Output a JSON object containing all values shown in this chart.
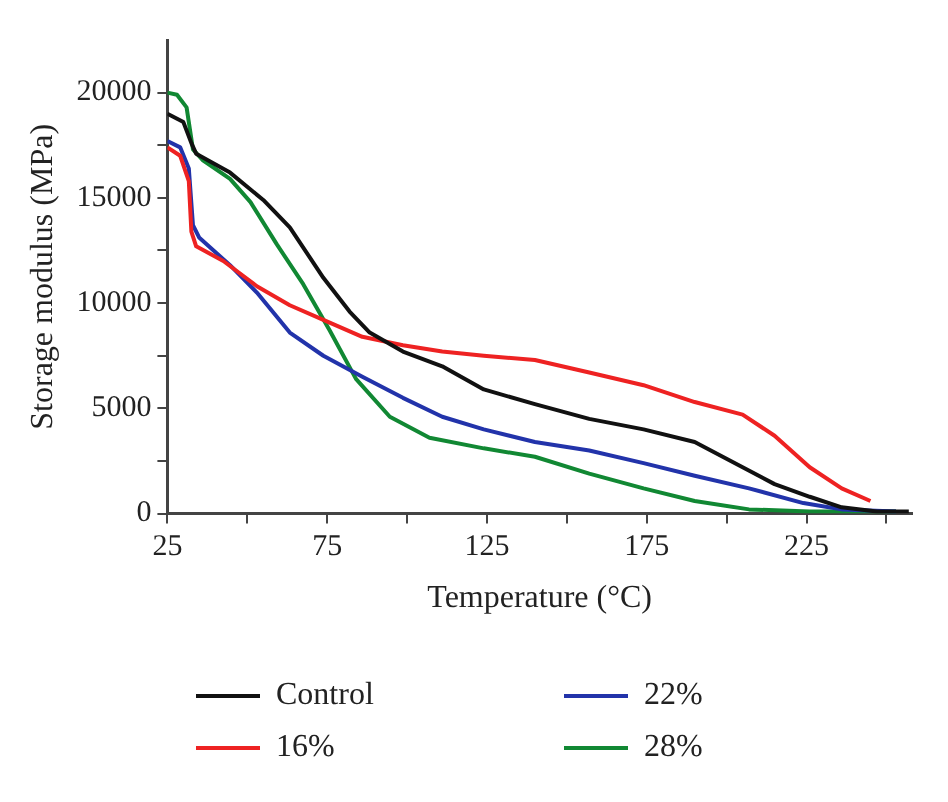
{
  "chart_data": {
    "type": "line",
    "xlabel": "Temperature (°C)",
    "ylabel": "Storage modulus (MPa)",
    "xlim": [
      25,
      258
    ],
    "ylim": [
      0,
      22500
    ],
    "xticks": [
      25,
      {
        "value": 50,
        "label": null
      },
      75,
      {
        "value": 100,
        "label": null
      },
      125,
      {
        "value": 150,
        "label": null
      },
      175,
      {
        "value": 200,
        "label": null
      },
      225,
      {
        "value": 250,
        "label": null
      }
    ],
    "yticks": [
      0,
      {
        "value": 2500,
        "label": null
      },
      5000,
      {
        "value": 7500,
        "label": null
      },
      10000,
      {
        "value": 12500,
        "label": null
      },
      15000,
      {
        "value": 17500,
        "label": null
      },
      20000
    ],
    "grid": false,
    "legend": "bottom",
    "marker": "none",
    "line_style": "solid",
    "series": [
      {
        "name": "Control",
        "color": "#111111",
        "x": [
          25,
          30,
          32.5,
          34,
          44.6,
          55,
          63.3,
          73.8,
          82,
          88.3,
          98.7,
          111,
          124,
          140,
          157,
          174,
          190,
          205,
          215,
          226,
          236,
          247,
          257
        ],
        "values": [
          19000,
          18600,
          17600,
          17100,
          16200,
          14900,
          13600,
          11200,
          9600,
          8600,
          7700,
          7000,
          5900,
          5200,
          4500,
          4000,
          3400,
          2200,
          1400,
          800,
          300,
          100,
          100
        ]
      },
      {
        "name": "16%",
        "color": "#ee2222",
        "x": [
          25,
          29,
          31.7,
          32.5,
          34,
          42.5,
          53,
          63.3,
          73.8,
          86,
          98.7,
          111,
          124,
          140,
          157,
          174,
          190,
          205,
          215,
          226,
          236,
          245
        ],
        "values": [
          17400,
          17000,
          15800,
          13400,
          12700,
          12000,
          10800,
          9900,
          9200,
          8400,
          8000,
          7700,
          7500,
          7300,
          6700,
          6100,
          5300,
          4700,
          3700,
          2200,
          1200,
          600
        ]
      },
      {
        "name": "22%",
        "color": "#2233aa",
        "x": [
          25,
          29,
          31.7,
          33,
          35,
          44.6,
          53,
          63.3,
          73.8,
          86,
          98.7,
          111,
          124,
          140,
          157,
          174,
          190,
          207,
          224,
          236,
          253
        ],
        "values": [
          17700,
          17400,
          16400,
          13700,
          13100,
          11800,
          10500,
          8600,
          7500,
          6500,
          5500,
          4600,
          4000,
          3400,
          3000,
          2400,
          1800,
          1200,
          500,
          200,
          100
        ]
      },
      {
        "name": "28%",
        "color": "#118833",
        "x": [
          25,
          28,
          31,
          33,
          36,
          44.6,
          51,
          59.2,
          67.5,
          75.8,
          84,
          94.6,
          107,
          124,
          140,
          157,
          174,
          190,
          207,
          226,
          253
        ],
        "values": [
          20000,
          19900,
          19300,
          17300,
          16800,
          15900,
          14800,
          12800,
          10900,
          8700,
          6400,
          4600,
          3600,
          3100,
          2700,
          1900,
          1200,
          600,
          200,
          100,
          100
        ]
      }
    ]
  }
}
